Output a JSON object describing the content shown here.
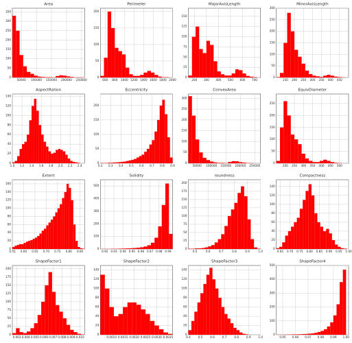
{
  "chart_data": [
    {
      "type": "histogram",
      "title": "Area",
      "color": "#ff0000",
      "grid": true,
      "bins": [
        20000,
        32000,
        44000,
        56000,
        68000,
        80000,
        92000,
        104000,
        116000,
        128000,
        140000,
        152000,
        164000,
        176000,
        188000,
        200000,
        212000,
        224000,
        236000,
        248000,
        260000
      ],
      "counts": [
        330,
        250,
        120,
        60,
        30,
        20,
        10,
        5,
        3,
        2,
        2,
        1,
        8,
        12,
        10,
        6,
        3,
        1,
        1,
        1
      ],
      "xlim": [
        20000,
        260000
      ],
      "xticks": [
        50000,
        100000,
        150000,
        200000,
        250000
      ],
      "ylim": [
        0,
        370
      ],
      "yticks": [
        0,
        50,
        100,
        150,
        200,
        250,
        300,
        350
      ]
    },
    {
      "type": "histogram",
      "title": "Perimeter",
      "color": "#ff0000",
      "grid": true,
      "bins": [
        500,
        575,
        650,
        725,
        800,
        875,
        950,
        1025,
        1100,
        1175,
        1250,
        1325,
        1400,
        1475,
        1550,
        1625,
        1700,
        1775,
        1850,
        1925,
        2000
      ],
      "counts": [
        5,
        60,
        200,
        150,
        90,
        80,
        70,
        30,
        10,
        5,
        5,
        8,
        15,
        20,
        15,
        8,
        3,
        1,
        1,
        0
      ],
      "xlim": [
        500,
        2000
      ],
      "xticks": [
        600,
        800,
        1000,
        1200,
        1400,
        1600,
        1800,
        2000
      ],
      "ylim": [
        0,
        210
      ],
      "yticks": [
        0,
        50,
        100,
        150,
        200
      ]
    },
    {
      "type": "histogram",
      "title": "MajorAxisLength",
      "color": "#ff0000",
      "grid": true,
      "bins": [
        150,
        180,
        210,
        240,
        270,
        300,
        330,
        360,
        390,
        420,
        450,
        480,
        510,
        540,
        570,
        600,
        630,
        660,
        690,
        720,
        750
      ],
      "counts": [
        5,
        100,
        125,
        70,
        60,
        90,
        80,
        40,
        15,
        8,
        5,
        5,
        10,
        20,
        18,
        10,
        4,
        2,
        1,
        0
      ],
      "xlim": [
        150,
        750
      ],
      "xticks": [
        200,
        300,
        400,
        500,
        600,
        700
      ],
      "ylim": [
        0,
        170
      ],
      "yticks": [
        0,
        25,
        50,
        75,
        100,
        125,
        150
      ]
    },
    {
      "type": "histogram",
      "title": "MinorAxisLength",
      "color": "#ff0000",
      "grid": true,
      "bins": [
        100,
        120,
        140,
        160,
        180,
        200,
        220,
        240,
        260,
        280,
        300,
        320,
        340,
        360,
        380,
        400,
        420,
        440,
        460,
        480,
        500
      ],
      "counts": [
        2,
        20,
        150,
        280,
        200,
        120,
        90,
        60,
        30,
        15,
        8,
        5,
        3,
        8,
        12,
        8,
        4,
        2,
        1,
        0
      ],
      "xlim": [
        100,
        500
      ],
      "xticks": [
        150,
        200,
        250,
        300,
        350,
        400,
        450
      ],
      "ylim": [
        0,
        300
      ],
      "yticks": [
        0,
        50,
        100,
        150,
        200,
        250,
        300
      ]
    },
    {
      "type": "histogram",
      "title": "AspectRation",
      "color": "#ff0000",
      "grid": true,
      "bins": [
        1,
        1.05,
        1.1,
        1.15,
        1.2,
        1.25,
        1.3,
        1.35,
        1.4,
        1.45,
        1.5,
        1.55,
        1.6,
        1.65,
        1.7,
        1.75,
        1.8,
        1.85,
        1.9,
        1.95,
        2,
        2.05,
        2.1,
        2.15,
        2.2,
        2.25,
        2.3,
        2.35,
        2.4,
        2.45,
        2.5
      ],
      "counts": [
        2,
        5,
        15,
        30,
        40,
        45,
        60,
        90,
        120,
        135,
        110,
        80,
        60,
        45,
        35,
        25,
        20,
        22,
        28,
        30,
        28,
        25,
        18,
        10,
        5,
        3,
        2,
        1,
        0,
        0
      ],
      "xlim": [
        1,
        2.5
      ],
      "xticks": [
        {
          "value": 1,
          "label": "1.0"
        },
        1.2,
        1.4,
        1.6,
        1.8,
        {
          "value": 2,
          "label": "2.0"
        },
        2.2,
        2.4
      ],
      "ylim": [
        0,
        145
      ],
      "yticks": [
        0,
        20,
        40,
        60,
        80,
        100,
        120,
        140
      ]
    },
    {
      "type": "histogram",
      "title": "Eccentricity",
      "color": "#ff0000",
      "grid": true,
      "bins": [
        0.2,
        0.225,
        0.25,
        0.275,
        0.3,
        0.325,
        0.35,
        0.375,
        0.4,
        0.425,
        0.45,
        0.475,
        0.5,
        0.525,
        0.55,
        0.575,
        0.6,
        0.625,
        0.65,
        0.675,
        0.7,
        0.725,
        0.75,
        0.775,
        0.8,
        0.825,
        0.85,
        0.875,
        0.9
      ],
      "counts": [
        1,
        1,
        1,
        2,
        2,
        3,
        3,
        4,
        5,
        6,
        8,
        10,
        12,
        15,
        20,
        25,
        30,
        40,
        50,
        65,
        80,
        110,
        150,
        200,
        220,
        170,
        90,
        20
      ],
      "xlim": [
        0.2,
        0.9
      ],
      "xticks": [
        0.2,
        0.3,
        0.4,
        0.5,
        0.6,
        0.7,
        0.8,
        0.9
      ],
      "ylim": [
        0,
        240
      ],
      "yticks": [
        0,
        50,
        100,
        150,
        200
      ]
    },
    {
      "type": "histogram",
      "title": "ConvexArea",
      "color": "#ff0000",
      "grid": true,
      "bins": [
        20000,
        32500,
        45000,
        57500,
        70000,
        82500,
        95000,
        107500,
        120000,
        132500,
        145000,
        157500,
        170000,
        182500,
        195000,
        207500,
        220000,
        232500,
        245000,
        257500,
        270000
      ],
      "counts": [
        310,
        220,
        110,
        50,
        25,
        15,
        8,
        4,
        2,
        2,
        1,
        6,
        10,
        9,
        5,
        3,
        1,
        1,
        0,
        0
      ],
      "xlim": [
        20000,
        270000
      ],
      "xticks": [
        50000,
        100000,
        150000,
        200000,
        250000
      ],
      "ylim": [
        0,
        320
      ],
      "yticks": [
        0,
        50,
        100,
        150,
        200,
        250,
        300
      ]
    },
    {
      "type": "histogram",
      "title": "EquivDiameter",
      "color": "#ff0000",
      "grid": true,
      "bins": [
        150,
        170,
        190,
        210,
        230,
        250,
        270,
        290,
        310,
        330,
        350,
        370,
        390,
        410,
        430,
        450,
        470,
        490,
        510,
        530,
        550
      ],
      "counts": [
        10,
        150,
        260,
        200,
        120,
        100,
        80,
        40,
        20,
        10,
        5,
        5,
        10,
        15,
        10,
        5,
        2,
        1,
        0,
        0
      ],
      "xlim": [
        150,
        550
      ],
      "xticks": [
        200,
        250,
        300,
        350,
        400,
        450,
        500
      ],
      "ylim": [
        0,
        290
      ],
      "yticks": [
        0,
        50,
        100,
        150,
        200,
        250
      ]
    },
    {
      "type": "histogram",
      "title": "Extent",
      "color": "#ff0000",
      "grid": true,
      "bins": [
        0.55,
        0.56,
        0.57,
        0.58,
        0.59,
        0.6,
        0.61,
        0.62,
        0.63,
        0.64,
        0.65,
        0.66,
        0.67,
        0.68,
        0.69,
        0.7,
        0.71,
        0.72,
        0.73,
        0.74,
        0.75,
        0.76,
        0.77,
        0.78,
        0.79,
        0.8,
        0.81,
        0.82,
        0.83,
        0.84,
        0.85,
        0.86,
        0.87
      ],
      "counts": [
        5,
        8,
        10,
        12,
        12,
        15,
        18,
        20,
        22,
        25,
        28,
        32,
        38,
        45,
        50,
        58,
        65,
        72,
        80,
        90,
        100,
        110,
        125,
        140,
        160,
        150,
        120,
        60,
        20,
        5,
        2,
        1
      ],
      "xlim": [
        0.55,
        0.87
      ],
      "xticks": [
        0.55,
        {
          "value": 0.6,
          "label": "0.60"
        },
        0.65,
        {
          "value": 0.7,
          "label": "0.70"
        },
        0.75,
        {
          "value": 0.8,
          "label": "0.80"
        },
        0.85
      ],
      "ylim": [
        0,
        170
      ],
      "yticks": [
        0,
        20,
        40,
        60,
        80,
        100,
        120,
        140,
        160
      ]
    },
    {
      "type": "histogram",
      "title": "Solidity",
      "color": "#ff0000",
      "grid": true,
      "bins": [
        0.915,
        0.919,
        0.923,
        0.927,
        0.931,
        0.935,
        0.939,
        0.943,
        0.947,
        0.951,
        0.955,
        0.959,
        0.963,
        0.967,
        0.971,
        0.975,
        0.979,
        0.983,
        0.987,
        0.991,
        0.995
      ],
      "counts": [
        1,
        1,
        1,
        2,
        2,
        3,
        4,
        5,
        6,
        8,
        10,
        14,
        20,
        30,
        50,
        90,
        180,
        350,
        520,
        120
      ],
      "xlim": [
        0.915,
        0.995
      ],
      "xticks": [
        0.92,
        0.93,
        0.94,
        0.95,
        0.96,
        0.97,
        0.98,
        0.99
      ],
      "ylim": [
        0,
        550
      ],
      "yticks": [
        0,
        100,
        200,
        300,
        400,
        500
      ]
    },
    {
      "type": "histogram",
      "title": "roundness",
      "color": "#ff0000",
      "grid": true,
      "bins": [
        0.45,
        0.475,
        0.5,
        0.525,
        0.55,
        0.575,
        0.6,
        0.625,
        0.65,
        0.675,
        0.7,
        0.725,
        0.75,
        0.775,
        0.8,
        0.825,
        0.85,
        0.875,
        0.9,
        0.925,
        0.95,
        0.975,
        1
      ],
      "counts": [
        1,
        1,
        2,
        2,
        3,
        5,
        8,
        12,
        20,
        30,
        45,
        70,
        100,
        120,
        140,
        170,
        190,
        160,
        90,
        30,
        5,
        1
      ],
      "xlim": [
        0.45,
        1
      ],
      "xticks": [
        0.5,
        0.6,
        0.7,
        0.8,
        0.9,
        {
          "value": 1,
          "label": "1.0"
        }
      ],
      "ylim": [
        0,
        210
      ],
      "yticks": [
        0,
        25,
        50,
        75,
        100,
        125,
        150,
        175,
        200
      ]
    },
    {
      "type": "histogram",
      "title": "Compactness",
      "color": "#ff0000",
      "grid": true,
      "bins": [
        0.63,
        0.645,
        0.66,
        0.675,
        0.69,
        0.705,
        0.72,
        0.735,
        0.75,
        0.765,
        0.78,
        0.795,
        0.81,
        0.825,
        0.84,
        0.855,
        0.87,
        0.885,
        0.9,
        0.915,
        0.93,
        0.945,
        0.96,
        0.975,
        0.99
      ],
      "counts": [
        2,
        5,
        15,
        30,
        40,
        50,
        60,
        70,
        90,
        110,
        130,
        145,
        120,
        80,
        60,
        50,
        40,
        45,
        35,
        20,
        10,
        5,
        2,
        1
      ],
      "xlim": [
        0.63,
        1
      ],
      "xticks": [
        0.65,
        {
          "value": 0.7,
          "label": "0.70"
        },
        0.75,
        {
          "value": 0.8,
          "label": "0.80"
        },
        0.85,
        {
          "value": 0.9,
          "label": "0.90"
        },
        0.95,
        {
          "value": 1,
          "label": "1.00"
        }
      ],
      "ylim": [
        0,
        155
      ],
      "yticks": [
        0,
        20,
        40,
        60,
        80,
        100,
        120,
        140
      ]
    },
    {
      "type": "histogram",
      "title": "ShapeFactor1",
      "color": "#ff0000",
      "grid": true,
      "bins": [
        0.0025,
        0.0029,
        0.0033,
        0.0037,
        0.0041,
        0.0045,
        0.0049,
        0.0053,
        0.0057,
        0.0061,
        0.0065,
        0.0069,
        0.0073,
        0.0077,
        0.0081,
        0.0085,
        0.0089,
        0.0093,
        0.0097,
        0.0101,
        0.0105
      ],
      "counts": [
        5,
        20,
        8,
        5,
        10,
        20,
        35,
        60,
        100,
        150,
        190,
        130,
        90,
        70,
        50,
        30,
        15,
        8,
        3,
        1
      ],
      "xlim": [
        0.0025,
        0.0105
      ],
      "xticks": [
        0.003,
        0.004,
        0.005,
        0.006,
        0.007,
        0.008,
        0.009,
        {
          "value": 0.01,
          "label": "0.010"
        }
      ],
      "ylim": [
        0,
        210
      ],
      "yticks": [
        0,
        25,
        50,
        75,
        100,
        125,
        150,
        175,
        200
      ]
    },
    {
      "type": "histogram",
      "title": "ShapeFactor2",
      "color": "#ff0000",
      "grid": true,
      "bins": [
        0.0005,
        0.0007,
        0.0009,
        0.0011,
        0.0013,
        0.0015,
        0.0017,
        0.0019,
        0.0021,
        0.0023,
        0.0025,
        0.0027,
        0.0029,
        0.0031,
        0.0033,
        0.0035,
        0.0037
      ],
      "counts": [
        130,
        100,
        60,
        40,
        45,
        60,
        70,
        70,
        65,
        55,
        45,
        30,
        20,
        12,
        5,
        2
      ],
      "xlim": [
        0.0005,
        0.0037
      ],
      "xticks": [
        {
          "value": 0.001,
          "label": "0.0010"
        },
        0.0015,
        {
          "value": 0.002,
          "label": "0.0020"
        },
        0.0025,
        {
          "value": 0.003,
          "label": "0.0030"
        },
        0.0035
      ],
      "ylim": [
        0,
        150
      ],
      "yticks": [
        0,
        20,
        40,
        60,
        80,
        100,
        120,
        140
      ]
    },
    {
      "type": "histogram",
      "title": "ShapeFactor3",
      "color": "#ff0000",
      "grid": true,
      "bins": [
        0.4,
        0.425,
        0.45,
        0.475,
        0.5,
        0.525,
        0.55,
        0.575,
        0.6,
        0.625,
        0.65,
        0.675,
        0.7,
        0.725,
        0.75,
        0.775,
        0.8,
        0.825,
        0.85,
        0.875,
        0.9,
        0.925,
        0.95,
        0.975,
        1
      ],
      "counts": [
        10,
        30,
        50,
        70,
        90,
        110,
        130,
        145,
        120,
        100,
        80,
        60,
        45,
        35,
        25,
        15,
        10,
        5,
        2,
        1,
        0,
        0,
        0,
        0
      ],
      "xlim": [
        0.4,
        1
      ],
      "xticks": [
        0.4,
        0.5,
        0.6,
        0.7,
        0.8,
        0.9,
        {
          "value": 1,
          "label": "1.0"
        }
      ],
      "ylim": [
        0,
        150
      ],
      "yticks": [
        0,
        20,
        40,
        60,
        80,
        100,
        120,
        140
      ]
    },
    {
      "type": "histogram",
      "title": "ShapeFactor4",
      "color": "#ff0000",
      "grid": true,
      "bins": [
        0.945,
        0.9475,
        0.95,
        0.9525,
        0.955,
        0.9575,
        0.96,
        0.9625,
        0.965,
        0.9675,
        0.97,
        0.9725,
        0.975,
        0.9775,
        0.98,
        0.9825,
        0.985,
        0.9875,
        0.99,
        0.9925,
        0.995,
        0.9975,
        1
      ],
      "counts": [
        1,
        1,
        1,
        2,
        2,
        3,
        3,
        4,
        5,
        6,
        8,
        10,
        14,
        20,
        28,
        40,
        60,
        90,
        140,
        220,
        380,
        470
      ],
      "xlim": [
        0.945,
        1.002
      ],
      "xticks": [
        0.95,
        0.96,
        0.97,
        0.98,
        0.99,
        {
          "value": 1,
          "label": "1.00"
        }
      ],
      "ylim": [
        0,
        500
      ],
      "yticks": [
        0,
        100,
        200,
        300,
        400,
        500
      ]
    }
  ]
}
